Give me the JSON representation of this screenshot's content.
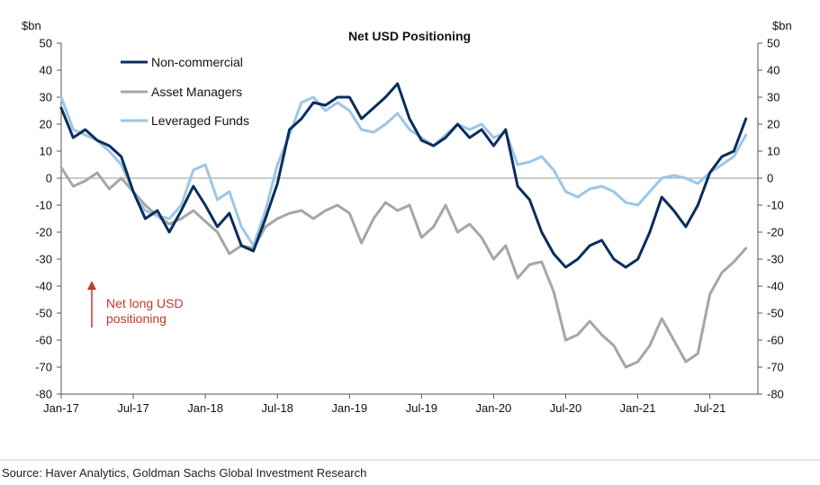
{
  "chart_data": {
    "type": "line",
    "title": "Net USD Positioning",
    "y_unit_left": "$bn",
    "y_unit_right": "$bn",
    "ylim": [
      -80,
      50
    ],
    "yticks": [
      50,
      40,
      30,
      20,
      10,
      0,
      -10,
      -20,
      -30,
      -40,
      -50,
      -60,
      -70,
      -80
    ],
    "ytick_labels": [
      "50",
      "40",
      "30",
      "20",
      "10",
      "0",
      "-10",
      "-20",
      "-30",
      "-40",
      "-50",
      "-60",
      "-70",
      "-80"
    ],
    "xlim": [
      "2017-01",
      "2021-11"
    ],
    "xticks": [
      "2017-01",
      "2017-07",
      "2018-01",
      "2018-07",
      "2019-01",
      "2019-07",
      "2020-01",
      "2020-07",
      "2021-01",
      "2021-07"
    ],
    "xtick_labels": [
      "Jan-17",
      "Jul-17",
      "Jan-18",
      "Jul-18",
      "Jan-19",
      "Jul-19",
      "Jan-20",
      "Jul-20",
      "Jan-21",
      "Jul-21"
    ],
    "legend_position": "top-left",
    "grid": false,
    "zero_line": true,
    "series": [
      {
        "name": "Non-commercial",
        "color": "#0b2d5b",
        "points": [
          [
            "2017-01",
            26
          ],
          [
            "2017-02",
            15
          ],
          [
            "2017-03",
            18
          ],
          [
            "2017-04",
            14
          ],
          [
            "2017-05",
            12
          ],
          [
            "2017-06",
            8
          ],
          [
            "2017-07",
            -5
          ],
          [
            "2017-08",
            -15
          ],
          [
            "2017-09",
            -12
          ],
          [
            "2017-10",
            -20
          ],
          [
            "2017-11",
            -12
          ],
          [
            "2017-12",
            -3
          ],
          [
            "2018-01",
            -10
          ],
          [
            "2018-02",
            -18
          ],
          [
            "2018-03",
            -13
          ],
          [
            "2018-04",
            -25
          ],
          [
            "2018-05",
            -27
          ],
          [
            "2018-06",
            -15
          ],
          [
            "2018-07",
            -2
          ],
          [
            "2018-08",
            18
          ],
          [
            "2018-09",
            22
          ],
          [
            "2018-10",
            28
          ],
          [
            "2018-11",
            27
          ],
          [
            "2018-12",
            30
          ],
          [
            "2019-01",
            30
          ],
          [
            "2019-02",
            22
          ],
          [
            "2019-03",
            26
          ],
          [
            "2019-04",
            30
          ],
          [
            "2019-05",
            35
          ],
          [
            "2019-06",
            22
          ],
          [
            "2019-07",
            14
          ],
          [
            "2019-08",
            12
          ],
          [
            "2019-09",
            15
          ],
          [
            "2019-10",
            20
          ],
          [
            "2019-11",
            15
          ],
          [
            "2019-12",
            18
          ],
          [
            "2020-01",
            12
          ],
          [
            "2020-02",
            18
          ],
          [
            "2020-03",
            -3
          ],
          [
            "2020-04",
            -8
          ],
          [
            "2020-05",
            -20
          ],
          [
            "2020-06",
            -28
          ],
          [
            "2020-07",
            -33
          ],
          [
            "2020-08",
            -30
          ],
          [
            "2020-09",
            -25
          ],
          [
            "2020-10",
            -23
          ],
          [
            "2020-11",
            -30
          ],
          [
            "2020-12",
            -33
          ],
          [
            "2021-01",
            -30
          ],
          [
            "2021-02",
            -20
          ],
          [
            "2021-03",
            -7
          ],
          [
            "2021-04",
            -12
          ],
          [
            "2021-05",
            -18
          ],
          [
            "2021-06",
            -10
          ],
          [
            "2021-07",
            2
          ],
          [
            "2021-08",
            8
          ],
          [
            "2021-09",
            10
          ],
          [
            "2021-10",
            22
          ]
        ]
      },
      {
        "name": "Asset Managers",
        "color": "#a6a6a6",
        "points": [
          [
            "2017-01",
            4
          ],
          [
            "2017-02",
            -3
          ],
          [
            "2017-03",
            -1
          ],
          [
            "2017-04",
            2
          ],
          [
            "2017-05",
            -4
          ],
          [
            "2017-06",
            0
          ],
          [
            "2017-07",
            -5
          ],
          [
            "2017-08",
            -10
          ],
          [
            "2017-09",
            -14
          ],
          [
            "2017-10",
            -17
          ],
          [
            "2017-11",
            -15
          ],
          [
            "2017-12",
            -12
          ],
          [
            "2018-01",
            -16
          ],
          [
            "2018-02",
            -20
          ],
          [
            "2018-03",
            -28
          ],
          [
            "2018-04",
            -25
          ],
          [
            "2018-05",
            -26
          ],
          [
            "2018-06",
            -18
          ],
          [
            "2018-07",
            -15
          ],
          [
            "2018-08",
            -13
          ],
          [
            "2018-09",
            -12
          ],
          [
            "2018-10",
            -15
          ],
          [
            "2018-11",
            -12
          ],
          [
            "2018-12",
            -10
          ],
          [
            "2019-01",
            -13
          ],
          [
            "2019-02",
            -24
          ],
          [
            "2019-03",
            -15
          ],
          [
            "2019-04",
            -9
          ],
          [
            "2019-05",
            -12
          ],
          [
            "2019-06",
            -10
          ],
          [
            "2019-07",
            -22
          ],
          [
            "2019-08",
            -18
          ],
          [
            "2019-09",
            -10
          ],
          [
            "2019-10",
            -20
          ],
          [
            "2019-11",
            -17
          ],
          [
            "2019-12",
            -22
          ],
          [
            "2020-01",
            -30
          ],
          [
            "2020-02",
            -25
          ],
          [
            "2020-03",
            -37
          ],
          [
            "2020-04",
            -32
          ],
          [
            "2020-05",
            -31
          ],
          [
            "2020-06",
            -42
          ],
          [
            "2020-07",
            -60
          ],
          [
            "2020-08",
            -58
          ],
          [
            "2020-09",
            -53
          ],
          [
            "2020-10",
            -58
          ],
          [
            "2020-11",
            -62
          ],
          [
            "2020-12",
            -70
          ],
          [
            "2021-01",
            -68
          ],
          [
            "2021-02",
            -62
          ],
          [
            "2021-03",
            -52
          ],
          [
            "2021-04",
            -60
          ],
          [
            "2021-05",
            -68
          ],
          [
            "2021-06",
            -65
          ],
          [
            "2021-07",
            -43
          ],
          [
            "2021-08",
            -35
          ],
          [
            "2021-09",
            -31
          ],
          [
            "2021-10",
            -26
          ]
        ]
      },
      {
        "name": "Leveraged Funds",
        "color": "#9cc6e6",
        "points": [
          [
            "2017-01",
            30
          ],
          [
            "2017-02",
            18
          ],
          [
            "2017-03",
            16
          ],
          [
            "2017-04",
            14
          ],
          [
            "2017-05",
            10
          ],
          [
            "2017-06",
            5
          ],
          [
            "2017-07",
            -5
          ],
          [
            "2017-08",
            -12
          ],
          [
            "2017-09",
            -14
          ],
          [
            "2017-10",
            -15
          ],
          [
            "2017-11",
            -10
          ],
          [
            "2017-12",
            3
          ],
          [
            "2018-01",
            5
          ],
          [
            "2018-02",
            -8
          ],
          [
            "2018-03",
            -5
          ],
          [
            "2018-04",
            -18
          ],
          [
            "2018-05",
            -25
          ],
          [
            "2018-06",
            -12
          ],
          [
            "2018-07",
            5
          ],
          [
            "2018-08",
            16
          ],
          [
            "2018-09",
            28
          ],
          [
            "2018-10",
            30
          ],
          [
            "2018-11",
            25
          ],
          [
            "2018-12",
            28
          ],
          [
            "2019-01",
            25
          ],
          [
            "2019-02",
            18
          ],
          [
            "2019-03",
            17
          ],
          [
            "2019-04",
            20
          ],
          [
            "2019-05",
            24
          ],
          [
            "2019-06",
            18
          ],
          [
            "2019-07",
            15
          ],
          [
            "2019-08",
            12
          ],
          [
            "2019-09",
            16
          ],
          [
            "2019-10",
            20
          ],
          [
            "2019-11",
            18
          ],
          [
            "2019-12",
            20
          ],
          [
            "2020-01",
            15
          ],
          [
            "2020-02",
            17
          ],
          [
            "2020-03",
            5
          ],
          [
            "2020-04",
            6
          ],
          [
            "2020-05",
            8
          ],
          [
            "2020-06",
            3
          ],
          [
            "2020-07",
            -5
          ],
          [
            "2020-08",
            -7
          ],
          [
            "2020-09",
            -4
          ],
          [
            "2020-10",
            -3
          ],
          [
            "2020-11",
            -5
          ],
          [
            "2020-12",
            -9
          ],
          [
            "2021-01",
            -10
          ],
          [
            "2021-02",
            -5
          ],
          [
            "2021-03",
            0
          ],
          [
            "2021-04",
            1
          ],
          [
            "2021-05",
            0
          ],
          [
            "2021-06",
            -2
          ],
          [
            "2021-07",
            2
          ],
          [
            "2021-08",
            5
          ],
          [
            "2021-09",
            8
          ],
          [
            "2021-10",
            16
          ]
        ]
      }
    ],
    "annotation": {
      "lines": [
        "Net long USD",
        "positioning"
      ],
      "color": "#c0392b",
      "arrow": "up"
    },
    "source": "Source: Haver Analytics, Goldman Sachs Global Investment Research"
  }
}
